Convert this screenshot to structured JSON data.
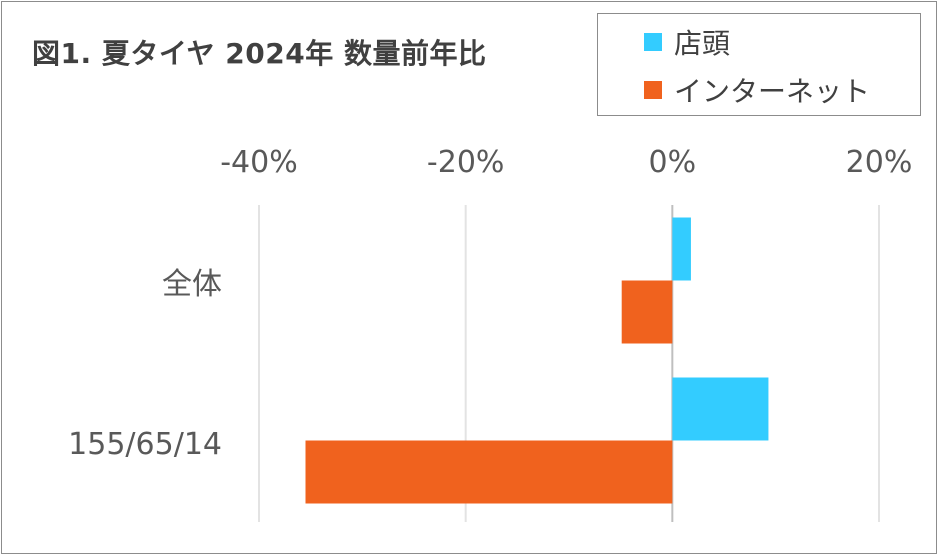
{
  "colors": {
    "store": "#33ccff",
    "internet": "#f0621e",
    "grid": "#e3e3e3",
    "axis": "#bfbfbf",
    "text": "#404040"
  },
  "chart_data": {
    "type": "bar",
    "orientation": "horizontal",
    "title": "図1. 夏タイヤ 2024年 数量前年比",
    "categories": [
      "全体",
      "155/65/14"
    ],
    "series": [
      {
        "name": "店頭",
        "values": [
          1.8,
          9.3
        ]
      },
      {
        "name": "インターネット",
        "values": [
          -4.9,
          -35.5
        ]
      }
    ],
    "value_unit": "%",
    "xlim": [
      -40,
      20
    ],
    "xticks": [
      -40,
      -20,
      0,
      20
    ],
    "xtick_labels": [
      "-40%",
      "-20%",
      "0%",
      "20%"
    ],
    "xaxis_position": "top",
    "grid": true,
    "legend_position": "top-right"
  }
}
